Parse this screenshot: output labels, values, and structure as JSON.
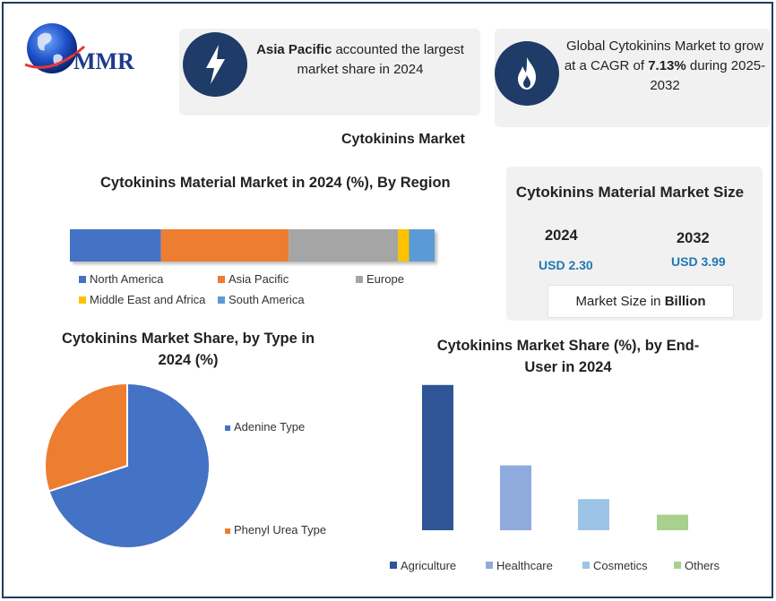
{
  "logo": {
    "text": "MMR"
  },
  "info_cards": {
    "region": {
      "highlight": "Asia Pacific",
      "text": " accounted the largest market share in 2024",
      "icon": "lightning-icon"
    },
    "cagr": {
      "text_before": "Global Cytokinins Market to grow at a CAGR of ",
      "highlight": "7.13%",
      "text_after": " during 2025-2032",
      "icon": "flame-icon"
    }
  },
  "main_title": "Cytokinins Market",
  "market_size": {
    "title": "Cytokinins Material Market Size",
    "year_start": "2024",
    "value_start": "USD 2.30",
    "year_end": "2032",
    "value_end": "USD 3.99",
    "note_prefix": "Market Size in ",
    "note_unit": "Billion"
  },
  "chart_data": [
    {
      "type": "bar",
      "orientation": "horizontal-stacked",
      "title": "Cytokinins Material Market in 2024 (%), By Region",
      "categories": [
        "North America",
        "Asia Pacific",
        "Europe",
        "Middle East and Africa",
        "South America"
      ],
      "values": [
        25,
        35,
        30,
        3,
        7
      ],
      "colors": [
        "#4472c4",
        "#ed7d31",
        "#a5a5a5",
        "#ffc000",
        "#5b9bd5"
      ],
      "legend": "bottom"
    },
    {
      "type": "pie",
      "title": "Cytokinins Market Share, by Type in 2024 (%)",
      "categories": [
        "Adenine Type",
        "Phenyl Urea Type"
      ],
      "values": [
        70,
        30
      ],
      "colors": [
        "#4472c4",
        "#ed7d31"
      ],
      "legend": "right"
    },
    {
      "type": "bar",
      "title": "Cytokinins Market Share (%), by End-User in 2024",
      "categories": [
        "Agriculture",
        "Healthcare",
        "Cosmetics",
        "Others"
      ],
      "values": [
        56,
        25,
        12,
        6
      ],
      "ylim": [
        0,
        60
      ],
      "colors": [
        "#2f5597",
        "#8faadc",
        "#9dc3e6",
        "#a9d18e"
      ],
      "legend": "bottom",
      "grid": false
    }
  ]
}
